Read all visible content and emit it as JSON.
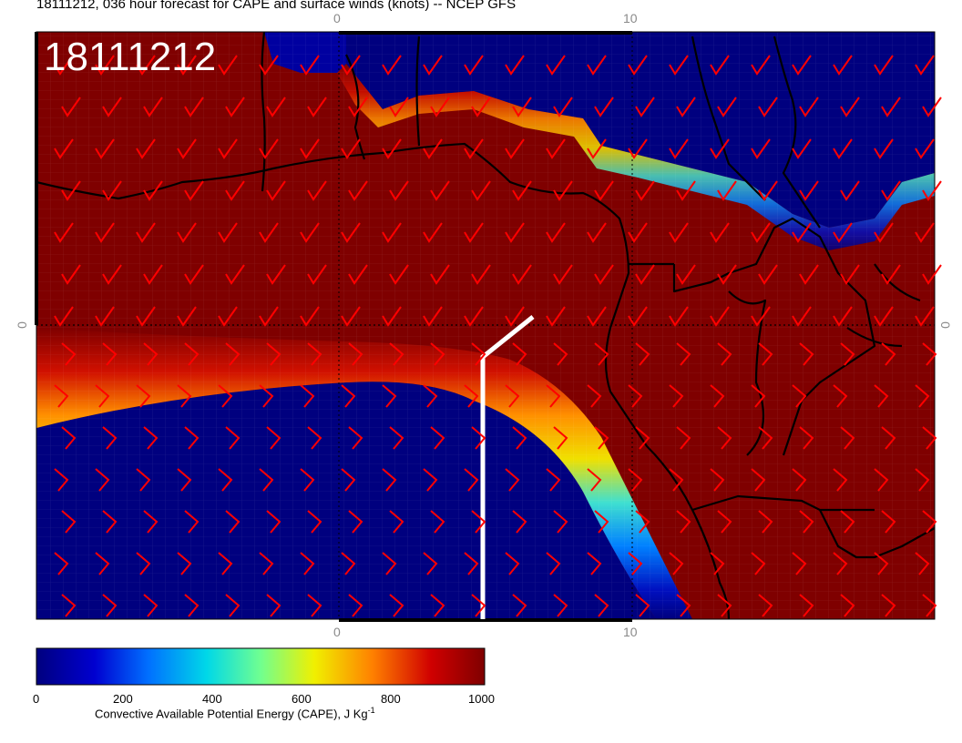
{
  "title": "18111212, 036 hour forecast for CAPE and surface winds (knots) -- NCEP GFS",
  "stamp": "18111212",
  "axis_ticks": {
    "top_0": "0",
    "top_10": "10",
    "bottom_0": "0",
    "bottom_10": "10",
    "left_0": "0",
    "right_0": "0"
  },
  "colorbar": {
    "title_main": "Convective Available Potential Energy (CAPE), J Kg",
    "title_sup": "-1",
    "labels": [
      "0",
      "200",
      "400",
      "600",
      "800",
      "1000"
    ],
    "min": 0,
    "max": 1000,
    "colors": [
      "#00007f",
      "#0000ff",
      "#00bfff",
      "#4fffaf",
      "#ffff00",
      "#ff8000",
      "#c00000",
      "#7f0000"
    ]
  },
  "map": {
    "barb_color": "#ff0000",
    "coast_color": "#000000",
    "track_color": "#ffffff"
  }
}
